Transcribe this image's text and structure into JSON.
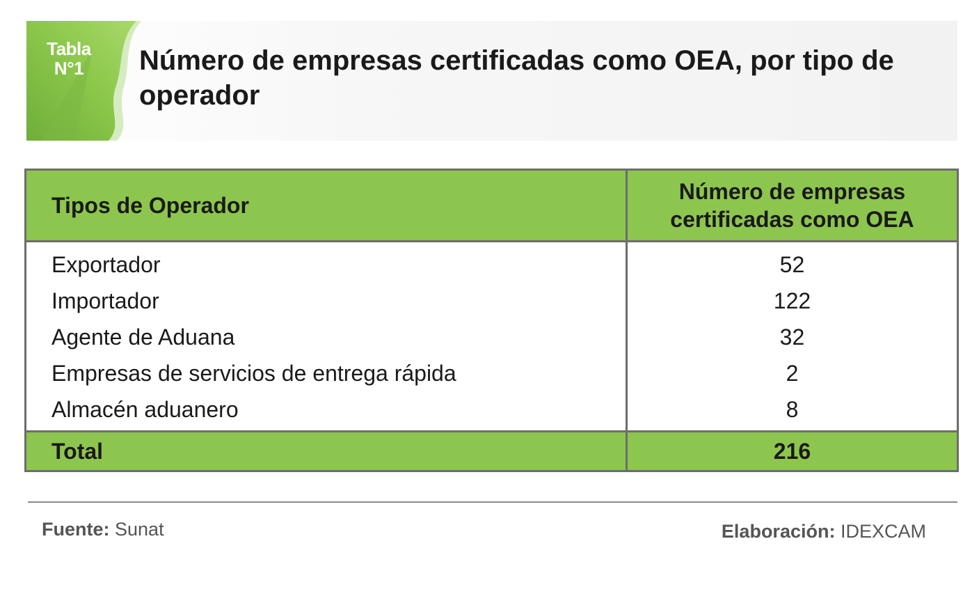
{
  "header": {
    "tag_line1": "Tabla",
    "tag_line2": "N°1",
    "title": "Número de empresas certificadas como OEA, por tipo de operador"
  },
  "table": {
    "headers": {
      "type": "Tipos de Operador",
      "count_line1": "Número de empresas",
      "count_line2": "certificadas como OEA"
    },
    "rows": [
      {
        "type": "Exportador",
        "count": "52"
      },
      {
        "type": "Importador",
        "count": "122"
      },
      {
        "type": "Agente de Aduana",
        "count": "32"
      },
      {
        "type": "Empresas de servicios de entrega rápida",
        "count": "2"
      },
      {
        "type": "Almacén aduanero",
        "count": "8"
      }
    ],
    "total": {
      "label": "Total",
      "count": "216"
    }
  },
  "footer": {
    "source_label": "Fuente:",
    "source_value": "Sunat",
    "credit_label": "Elaboración:",
    "credit_value": "IDEXCAM"
  },
  "colors": {
    "accent_green": "#8dc64e",
    "border_gray": "#6d6d6d"
  }
}
